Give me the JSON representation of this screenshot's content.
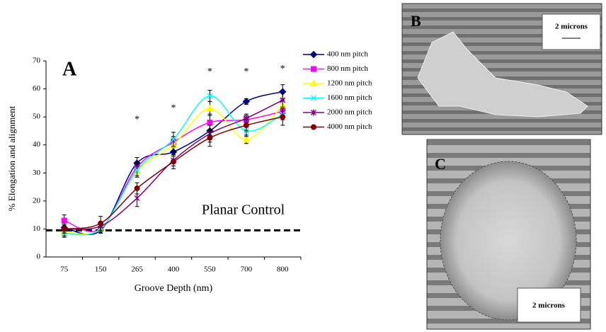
{
  "chart_data": {
    "type": "line",
    "panel_label": "A",
    "xlabel": "Groove Depth (nm)",
    "ylabel": "% Elongation and alignment",
    "categories": [
      "75",
      "150",
      "265",
      "400",
      "550",
      "700",
      "800"
    ],
    "ylim": [
      0,
      70
    ],
    "yticks": [
      0,
      10,
      20,
      30,
      40,
      50,
      60,
      70
    ],
    "series": [
      {
        "name": "400 nm pitch",
        "color": "#000080",
        "marker": "diamond",
        "values": [
          10.5,
          9.5,
          33.5,
          37.5,
          45,
          55.5,
          59
        ],
        "errors": [
          1.5,
          1,
          2,
          1.5,
          2.5,
          1,
          2.5
        ]
      },
      {
        "name": "800 nm pitch",
        "color": "#ff00ff",
        "marker": "square",
        "values": [
          13,
          10,
          32,
          41,
          48,
          49,
          52
        ],
        "errors": [
          2,
          1,
          2,
          2,
          3,
          1.5,
          2
        ]
      },
      {
        "name": "1200 nm pitch",
        "color": "#ffff00",
        "marker": "triangle",
        "values": [
          9,
          10,
          30.5,
          40,
          53,
          42,
          54
        ],
        "errors": [
          1.5,
          1,
          2,
          2,
          2.5,
          1.5,
          2
        ]
      },
      {
        "name": "1600 nm pitch",
        "color": "#00ffff",
        "marker": "cross",
        "values": [
          8.5,
          10,
          31,
          42,
          57.5,
          45,
          51
        ],
        "errors": [
          1.5,
          1,
          2,
          2.5,
          2,
          2,
          2
        ]
      },
      {
        "name": "2000 nm pitch",
        "color": "#800080",
        "marker": "star",
        "values": [
          10,
          11,
          21,
          34.5,
          44,
          49.5,
          56
        ],
        "errors": [
          1.5,
          1.5,
          3,
          2,
          3,
          1.5,
          2.5
        ]
      },
      {
        "name": "4000 nm pitch",
        "color": "#800000",
        "marker": "circle",
        "values": [
          10,
          12,
          24.5,
          34,
          42.5,
          47,
          50
        ],
        "errors": [
          1.5,
          2.5,
          2,
          2.5,
          3,
          2,
          3
        ]
      }
    ],
    "reference_line": {
      "value": 9.5,
      "label": "Planar Control"
    },
    "annotations": [
      {
        "text": "*",
        "x": "265",
        "y": 49
      },
      {
        "text": "*",
        "x": "400",
        "y": 53
      },
      {
        "text": "*",
        "x": "550",
        "y": 66
      },
      {
        "text": "*",
        "x": "700",
        "y": 66
      },
      {
        "text": "*",
        "x": "800",
        "y": 67
      }
    ]
  },
  "panels": [
    {
      "label": "B",
      "scale_label": "2 microns"
    },
    {
      "label": "C",
      "scale_label": "2 microns"
    }
  ]
}
